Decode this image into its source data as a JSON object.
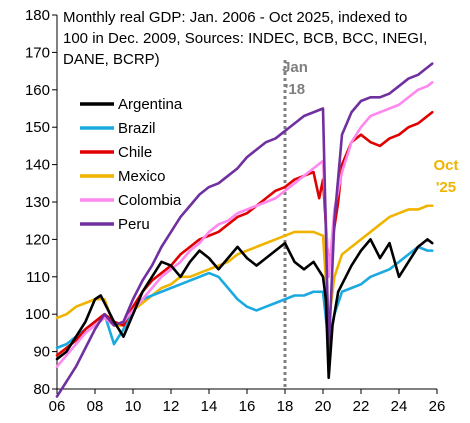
{
  "chart_data": {
    "type": "line",
    "title_lines": [
      "Monthly real GDP: Jan. 2006 - Oct 2025, indexed to",
      "100 in Dec. 2009, Sources: INDEC, BCB, BCC, INEGI,",
      "DANE, BCRP)"
    ],
    "xlabel": "",
    "ylabel": "",
    "xlim": [
      2006,
      2026
    ],
    "ylim": [
      80,
      180
    ],
    "x_ticks": [
      2006,
      2008,
      2010,
      2012,
      2014,
      2016,
      2018,
      2020,
      2022,
      2024,
      2026
    ],
    "x_tick_labels": [
      "06",
      "08",
      "10",
      "12",
      "14",
      "16",
      "18",
      "20",
      "22",
      "24",
      "26"
    ],
    "y_ticks": [
      80,
      90,
      100,
      110,
      120,
      130,
      140,
      150,
      160,
      170,
      180
    ],
    "y_tick_labels": [
      "80",
      "90",
      "100",
      "110",
      "120",
      "130",
      "140",
      "150",
      "160",
      "170",
      "180"
    ],
    "grid": false,
    "legend_position": "left",
    "annotations": [
      {
        "lines": [
          "Jan",
          "'18"
        ],
        "x": 2018,
        "color": "#808080",
        "dashed_vline": true
      },
      {
        "lines": [
          "Oct",
          "'25"
        ],
        "x": 2025.75,
        "color": "#f0b400",
        "dashed_vline": false
      }
    ],
    "series": [
      {
        "name": "Argentina",
        "color": "#000000",
        "points": [
          [
            2006.0,
            88
          ],
          [
            2006.5,
            90
          ],
          [
            2007.0,
            94
          ],
          [
            2007.5,
            98
          ],
          [
            2008.0,
            104
          ],
          [
            2008.3,
            105
          ],
          [
            2008.6,
            102
          ],
          [
            2009.0,
            98
          ],
          [
            2009.5,
            94
          ],
          [
            2010.0,
            100
          ],
          [
            2010.5,
            106
          ],
          [
            2011.0,
            110
          ],
          [
            2011.5,
            114
          ],
          [
            2012.0,
            113
          ],
          [
            2012.5,
            110
          ],
          [
            2013.0,
            114
          ],
          [
            2013.5,
            117
          ],
          [
            2014.0,
            115
          ],
          [
            2014.5,
            112
          ],
          [
            2015.0,
            115
          ],
          [
            2015.5,
            118
          ],
          [
            2016.0,
            115
          ],
          [
            2016.5,
            113
          ],
          [
            2017.0,
            115
          ],
          [
            2017.5,
            117
          ],
          [
            2018.0,
            119
          ],
          [
            2018.5,
            114
          ],
          [
            2019.0,
            112
          ],
          [
            2019.5,
            114
          ],
          [
            2020.0,
            110
          ],
          [
            2020.15,
            104
          ],
          [
            2020.3,
            83
          ],
          [
            2020.5,
            97
          ],
          [
            2020.8,
            106
          ],
          [
            2021.0,
            108
          ],
          [
            2021.5,
            113
          ],
          [
            2022.0,
            117
          ],
          [
            2022.5,
            120
          ],
          [
            2023.0,
            115
          ],
          [
            2023.5,
            119
          ],
          [
            2024.0,
            110
          ],
          [
            2024.5,
            114
          ],
          [
            2025.0,
            118
          ],
          [
            2025.5,
            120
          ],
          [
            2025.75,
            119
          ]
        ]
      },
      {
        "name": "Brazil",
        "color": "#1aa9e1",
        "points": [
          [
            2006.0,
            91
          ],
          [
            2006.5,
            92
          ],
          [
            2007.0,
            94
          ],
          [
            2007.5,
            96
          ],
          [
            2008.0,
            98
          ],
          [
            2008.5,
            100
          ],
          [
            2009.0,
            92
          ],
          [
            2009.5,
            96
          ],
          [
            2010.0,
            101
          ],
          [
            2010.5,
            104
          ],
          [
            2011.0,
            105
          ],
          [
            2011.5,
            106
          ],
          [
            2012.0,
            107
          ],
          [
            2012.5,
            108
          ],
          [
            2013.0,
            109
          ],
          [
            2013.5,
            110
          ],
          [
            2014.0,
            111
          ],
          [
            2014.5,
            110
          ],
          [
            2015.0,
            107
          ],
          [
            2015.5,
            104
          ],
          [
            2016.0,
            102
          ],
          [
            2016.5,
            101
          ],
          [
            2017.0,
            102
          ],
          [
            2017.5,
            103
          ],
          [
            2018.0,
            104
          ],
          [
            2018.5,
            105
          ],
          [
            2019.0,
            105
          ],
          [
            2019.5,
            106
          ],
          [
            2020.0,
            106
          ],
          [
            2020.3,
            92
          ],
          [
            2020.6,
            100
          ],
          [
            2021.0,
            106
          ],
          [
            2021.5,
            107
          ],
          [
            2022.0,
            108
          ],
          [
            2022.5,
            110
          ],
          [
            2023.0,
            111
          ],
          [
            2023.5,
            112
          ],
          [
            2024.0,
            114
          ],
          [
            2024.5,
            116
          ],
          [
            2025.0,
            118
          ],
          [
            2025.5,
            117
          ],
          [
            2025.75,
            117
          ]
        ]
      },
      {
        "name": "Chile",
        "color": "#e00000",
        "points": [
          [
            2006.0,
            89
          ],
          [
            2006.5,
            91
          ],
          [
            2007.0,
            93
          ],
          [
            2007.5,
            96
          ],
          [
            2008.0,
            98
          ],
          [
            2008.5,
            100
          ],
          [
            2009.0,
            98
          ],
          [
            2009.5,
            97
          ],
          [
            2010.0,
            102
          ],
          [
            2010.5,
            106
          ],
          [
            2011.0,
            109
          ],
          [
            2011.5,
            111
          ],
          [
            2012.0,
            113
          ],
          [
            2012.5,
            116
          ],
          [
            2013.0,
            118
          ],
          [
            2013.5,
            120
          ],
          [
            2014.0,
            121
          ],
          [
            2014.5,
            122
          ],
          [
            2015.0,
            124
          ],
          [
            2015.5,
            126
          ],
          [
            2016.0,
            127
          ],
          [
            2016.5,
            129
          ],
          [
            2017.0,
            131
          ],
          [
            2017.5,
            133
          ],
          [
            2018.0,
            134
          ],
          [
            2018.5,
            136
          ],
          [
            2019.0,
            137
          ],
          [
            2019.5,
            138
          ],
          [
            2019.8,
            131
          ],
          [
            2020.0,
            136
          ],
          [
            2020.3,
            112
          ],
          [
            2020.5,
            120
          ],
          [
            2020.8,
            130
          ],
          [
            2021.0,
            140
          ],
          [
            2021.5,
            146
          ],
          [
            2022.0,
            148
          ],
          [
            2022.5,
            146
          ],
          [
            2023.0,
            145
          ],
          [
            2023.5,
            147
          ],
          [
            2024.0,
            148
          ],
          [
            2024.5,
            150
          ],
          [
            2025.0,
            151
          ],
          [
            2025.5,
            153
          ],
          [
            2025.75,
            154
          ]
        ]
      },
      {
        "name": "Mexico",
        "color": "#f0b400",
        "points": [
          [
            2006.0,
            99
          ],
          [
            2006.5,
            100
          ],
          [
            2007.0,
            102
          ],
          [
            2007.5,
            103
          ],
          [
            2008.0,
            104
          ],
          [
            2008.5,
            104
          ],
          [
            2009.0,
            97
          ],
          [
            2009.5,
            97
          ],
          [
            2010.0,
            101
          ],
          [
            2010.5,
            103
          ],
          [
            2011.0,
            105
          ],
          [
            2011.5,
            107
          ],
          [
            2012.0,
            108
          ],
          [
            2012.5,
            110
          ],
          [
            2013.0,
            110
          ],
          [
            2013.5,
            111
          ],
          [
            2014.0,
            112
          ],
          [
            2014.5,
            113
          ],
          [
            2015.0,
            114
          ],
          [
            2015.5,
            116
          ],
          [
            2016.0,
            117
          ],
          [
            2016.5,
            118
          ],
          [
            2017.0,
            119
          ],
          [
            2017.5,
            120
          ],
          [
            2018.0,
            121
          ],
          [
            2018.5,
            122
          ],
          [
            2019.0,
            122
          ],
          [
            2019.5,
            122
          ],
          [
            2020.0,
            121
          ],
          [
            2020.3,
            98
          ],
          [
            2020.6,
            110
          ],
          [
            2021.0,
            116
          ],
          [
            2021.5,
            118
          ],
          [
            2022.0,
            120
          ],
          [
            2022.5,
            122
          ],
          [
            2023.0,
            124
          ],
          [
            2023.5,
            126
          ],
          [
            2024.0,
            127
          ],
          [
            2024.5,
            128
          ],
          [
            2025.0,
            128
          ],
          [
            2025.5,
            129
          ],
          [
            2025.75,
            129
          ]
        ]
      },
      {
        "name": "Colombia",
        "color": "#ff88ee",
        "points": [
          [
            2006.0,
            86
          ],
          [
            2006.5,
            89
          ],
          [
            2007.0,
            92
          ],
          [
            2007.5,
            95
          ],
          [
            2008.0,
            97
          ],
          [
            2008.5,
            99
          ],
          [
            2009.0,
            97
          ],
          [
            2009.5,
            98
          ],
          [
            2010.0,
            101
          ],
          [
            2010.5,
            104
          ],
          [
            2011.0,
            107
          ],
          [
            2011.5,
            110
          ],
          [
            2012.0,
            112
          ],
          [
            2012.5,
            114
          ],
          [
            2013.0,
            117
          ],
          [
            2013.5,
            119
          ],
          [
            2014.0,
            122
          ],
          [
            2014.5,
            124
          ],
          [
            2015.0,
            125
          ],
          [
            2015.5,
            127
          ],
          [
            2016.0,
            128
          ],
          [
            2016.5,
            129
          ],
          [
            2017.0,
            130
          ],
          [
            2017.5,
            131
          ],
          [
            2018.0,
            133
          ],
          [
            2018.5,
            135
          ],
          [
            2019.0,
            137
          ],
          [
            2019.5,
            139
          ],
          [
            2020.0,
            141
          ],
          [
            2020.3,
            110
          ],
          [
            2020.6,
            128
          ],
          [
            2021.0,
            138
          ],
          [
            2021.5,
            146
          ],
          [
            2022.0,
            150
          ],
          [
            2022.5,
            153
          ],
          [
            2023.0,
            154
          ],
          [
            2023.5,
            155
          ],
          [
            2024.0,
            156
          ],
          [
            2024.5,
            158
          ],
          [
            2025.0,
            160
          ],
          [
            2025.5,
            161
          ],
          [
            2025.75,
            162
          ]
        ]
      },
      {
        "name": "Peru",
        "color": "#7030a0",
        "points": [
          [
            2006.0,
            78
          ],
          [
            2006.5,
            82
          ],
          [
            2007.0,
            86
          ],
          [
            2007.5,
            91
          ],
          [
            2008.0,
            96
          ],
          [
            2008.5,
            100
          ],
          [
            2009.0,
            97
          ],
          [
            2009.5,
            98
          ],
          [
            2010.0,
            104
          ],
          [
            2010.5,
            109
          ],
          [
            2011.0,
            113
          ],
          [
            2011.5,
            118
          ],
          [
            2012.0,
            122
          ],
          [
            2012.5,
            126
          ],
          [
            2013.0,
            129
          ],
          [
            2013.5,
            132
          ],
          [
            2014.0,
            134
          ],
          [
            2014.5,
            135
          ],
          [
            2015.0,
            137
          ],
          [
            2015.5,
            139
          ],
          [
            2016.0,
            142
          ],
          [
            2016.5,
            144
          ],
          [
            2017.0,
            146
          ],
          [
            2017.5,
            147
          ],
          [
            2018.0,
            149
          ],
          [
            2018.5,
            151
          ],
          [
            2019.0,
            153
          ],
          [
            2019.5,
            154
          ],
          [
            2020.0,
            155
          ],
          [
            2020.3,
            90
          ],
          [
            2020.6,
            125
          ],
          [
            2021.0,
            148
          ],
          [
            2021.5,
            154
          ],
          [
            2022.0,
            157
          ],
          [
            2022.5,
            158
          ],
          [
            2023.0,
            158
          ],
          [
            2023.5,
            159
          ],
          [
            2024.0,
            161
          ],
          [
            2024.5,
            163
          ],
          [
            2025.0,
            164
          ],
          [
            2025.5,
            166
          ],
          [
            2025.75,
            167
          ]
        ]
      }
    ]
  }
}
